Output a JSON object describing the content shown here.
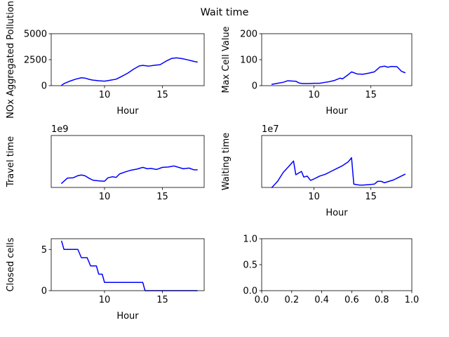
{
  "figure": {
    "title": "Wait time"
  },
  "chart_data": [
    {
      "type": "line",
      "xlabel": "Hour",
      "ylabel": "NOx Aggregated Pollution",
      "xlim": [
        5.4,
        18.6
      ],
      "ylim": [
        0,
        5000
      ],
      "xticks": [
        10,
        15
      ],
      "yticks": [
        0,
        2500,
        5000
      ],
      "offset_label": "",
      "series": [
        {
          "color": "#0000ff",
          "x": [
            6.3,
            6.5,
            7.0,
            7.5,
            8.0,
            8.3,
            8.7,
            9.0,
            9.5,
            10.0,
            10.5,
            11.0,
            11.5,
            12.0,
            12.5,
            13.0,
            13.3,
            13.8,
            14.3,
            14.8,
            15.3,
            15.8,
            16.2,
            16.7,
            17.2,
            17.7,
            18.0
          ],
          "y": [
            30,
            200,
            430,
            620,
            760,
            730,
            600,
            530,
            470,
            430,
            520,
            620,
            900,
            1200,
            1580,
            1900,
            1950,
            1880,
            1960,
            2020,
            2350,
            2620,
            2680,
            2600,
            2480,
            2340,
            2270
          ]
        }
      ]
    },
    {
      "type": "line",
      "xlabel": "Hour",
      "ylabel": "Max Cell Value",
      "xlim": [
        5.4,
        18.6
      ],
      "ylim": [
        0,
        200
      ],
      "xticks": [
        10,
        15
      ],
      "yticks": [
        0,
        100,
        200
      ],
      "offset_label": "",
      "series": [
        {
          "color": "#0000ff",
          "x": [
            6.3,
            6.8,
            7.3,
            7.7,
            8.0,
            8.4,
            8.7,
            9.0,
            9.5,
            10.0,
            10.5,
            11.0,
            11.3,
            11.8,
            12.3,
            12.5,
            13.0,
            13.3,
            13.8,
            14.3,
            14.8,
            15.3,
            15.8,
            16.2,
            16.5,
            16.8,
            17.3,
            17.7,
            18.0
          ],
          "y": [
            5,
            9,
            13,
            19,
            18,
            17,
            10,
            8,
            8,
            9,
            9,
            13,
            15,
            20,
            29,
            26,
            42,
            53,
            45,
            44,
            48,
            53,
            72,
            75,
            71,
            74,
            73,
            55,
            50
          ]
        }
      ]
    },
    {
      "type": "line",
      "xlabel": "",
      "ylabel": "Travel time",
      "xlim": [
        5.4,
        18.6
      ],
      "ylim": [
        0,
        1.5
      ],
      "xticks": [
        10,
        15
      ],
      "yticks": [],
      "offset_label": "1e9",
      "series": [
        {
          "color": "#0000ff",
          "x": [
            6.3,
            6.8,
            7.3,
            7.7,
            8.0,
            8.3,
            8.7,
            9.0,
            9.5,
            10.0,
            10.3,
            10.7,
            11.0,
            11.3,
            11.8,
            12.3,
            12.8,
            13.3,
            13.7,
            14.0,
            14.5,
            15.0,
            15.5,
            16.0,
            16.3,
            16.8,
            17.3,
            17.7,
            18.0
          ],
          "y": [
            0.12,
            0.27,
            0.28,
            0.34,
            0.36,
            0.34,
            0.26,
            0.21,
            0.19,
            0.18,
            0.28,
            0.31,
            0.29,
            0.39,
            0.45,
            0.5,
            0.53,
            0.58,
            0.54,
            0.55,
            0.52,
            0.58,
            0.59,
            0.62,
            0.59,
            0.54,
            0.56,
            0.51,
            0.51
          ]
        }
      ]
    },
    {
      "type": "line",
      "xlabel": "Hour",
      "ylabel": "Waiting time",
      "xlim": [
        5.4,
        18.6
      ],
      "ylim": [
        0,
        1.1
      ],
      "xticks": [
        10,
        15
      ],
      "yticks": [],
      "offset_label": "1e7",
      "series": [
        {
          "color": "#0000ff",
          "x": [
            6.3,
            6.8,
            7.3,
            7.8,
            8.2,
            8.4,
            8.9,
            9.1,
            9.4,
            9.7,
            10.0,
            10.5,
            11.0,
            11.5,
            12.0,
            12.5,
            13.0,
            13.3,
            13.5,
            14.0,
            14.3,
            14.8,
            15.3,
            15.6,
            15.9,
            16.2,
            16.6,
            17.0,
            17.5,
            18.0
          ],
          "y": [
            0.0,
            0.13,
            0.32,
            0.45,
            0.56,
            0.27,
            0.34,
            0.22,
            0.24,
            0.15,
            0.18,
            0.24,
            0.28,
            0.34,
            0.4,
            0.46,
            0.54,
            0.63,
            0.07,
            0.05,
            0.05,
            0.06,
            0.07,
            0.13,
            0.13,
            0.1,
            0.13,
            0.16,
            0.22,
            0.28
          ]
        }
      ]
    },
    {
      "type": "line",
      "xlabel": "Hour",
      "ylabel": "Closed cells",
      "xlim": [
        5.4,
        18.6
      ],
      "ylim": [
        0,
        6.3
      ],
      "xticks": [
        10,
        15
      ],
      "yticks": [
        0,
        5
      ],
      "offset_label": "",
      "series": [
        {
          "color": "#0000ff",
          "x": [
            6.3,
            6.5,
            7.7,
            8.0,
            8.5,
            8.8,
            9.3,
            9.5,
            9.8,
            10.0,
            13.3,
            13.5,
            18.0
          ],
          "y": [
            6,
            5,
            5,
            4,
            4,
            3,
            3,
            2,
            2,
            1,
            1,
            0,
            0
          ]
        }
      ]
    },
    {
      "type": "line",
      "xlabel": "",
      "ylabel": "",
      "xlim": [
        0,
        1
      ],
      "ylim": [
        0,
        1
      ],
      "xticks": [
        0.0,
        0.2,
        0.4,
        0.6,
        0.8,
        1.0
      ],
      "yticks": [
        0.0,
        0.5,
        1.0
      ],
      "offset_label": "",
      "series": []
    }
  ]
}
